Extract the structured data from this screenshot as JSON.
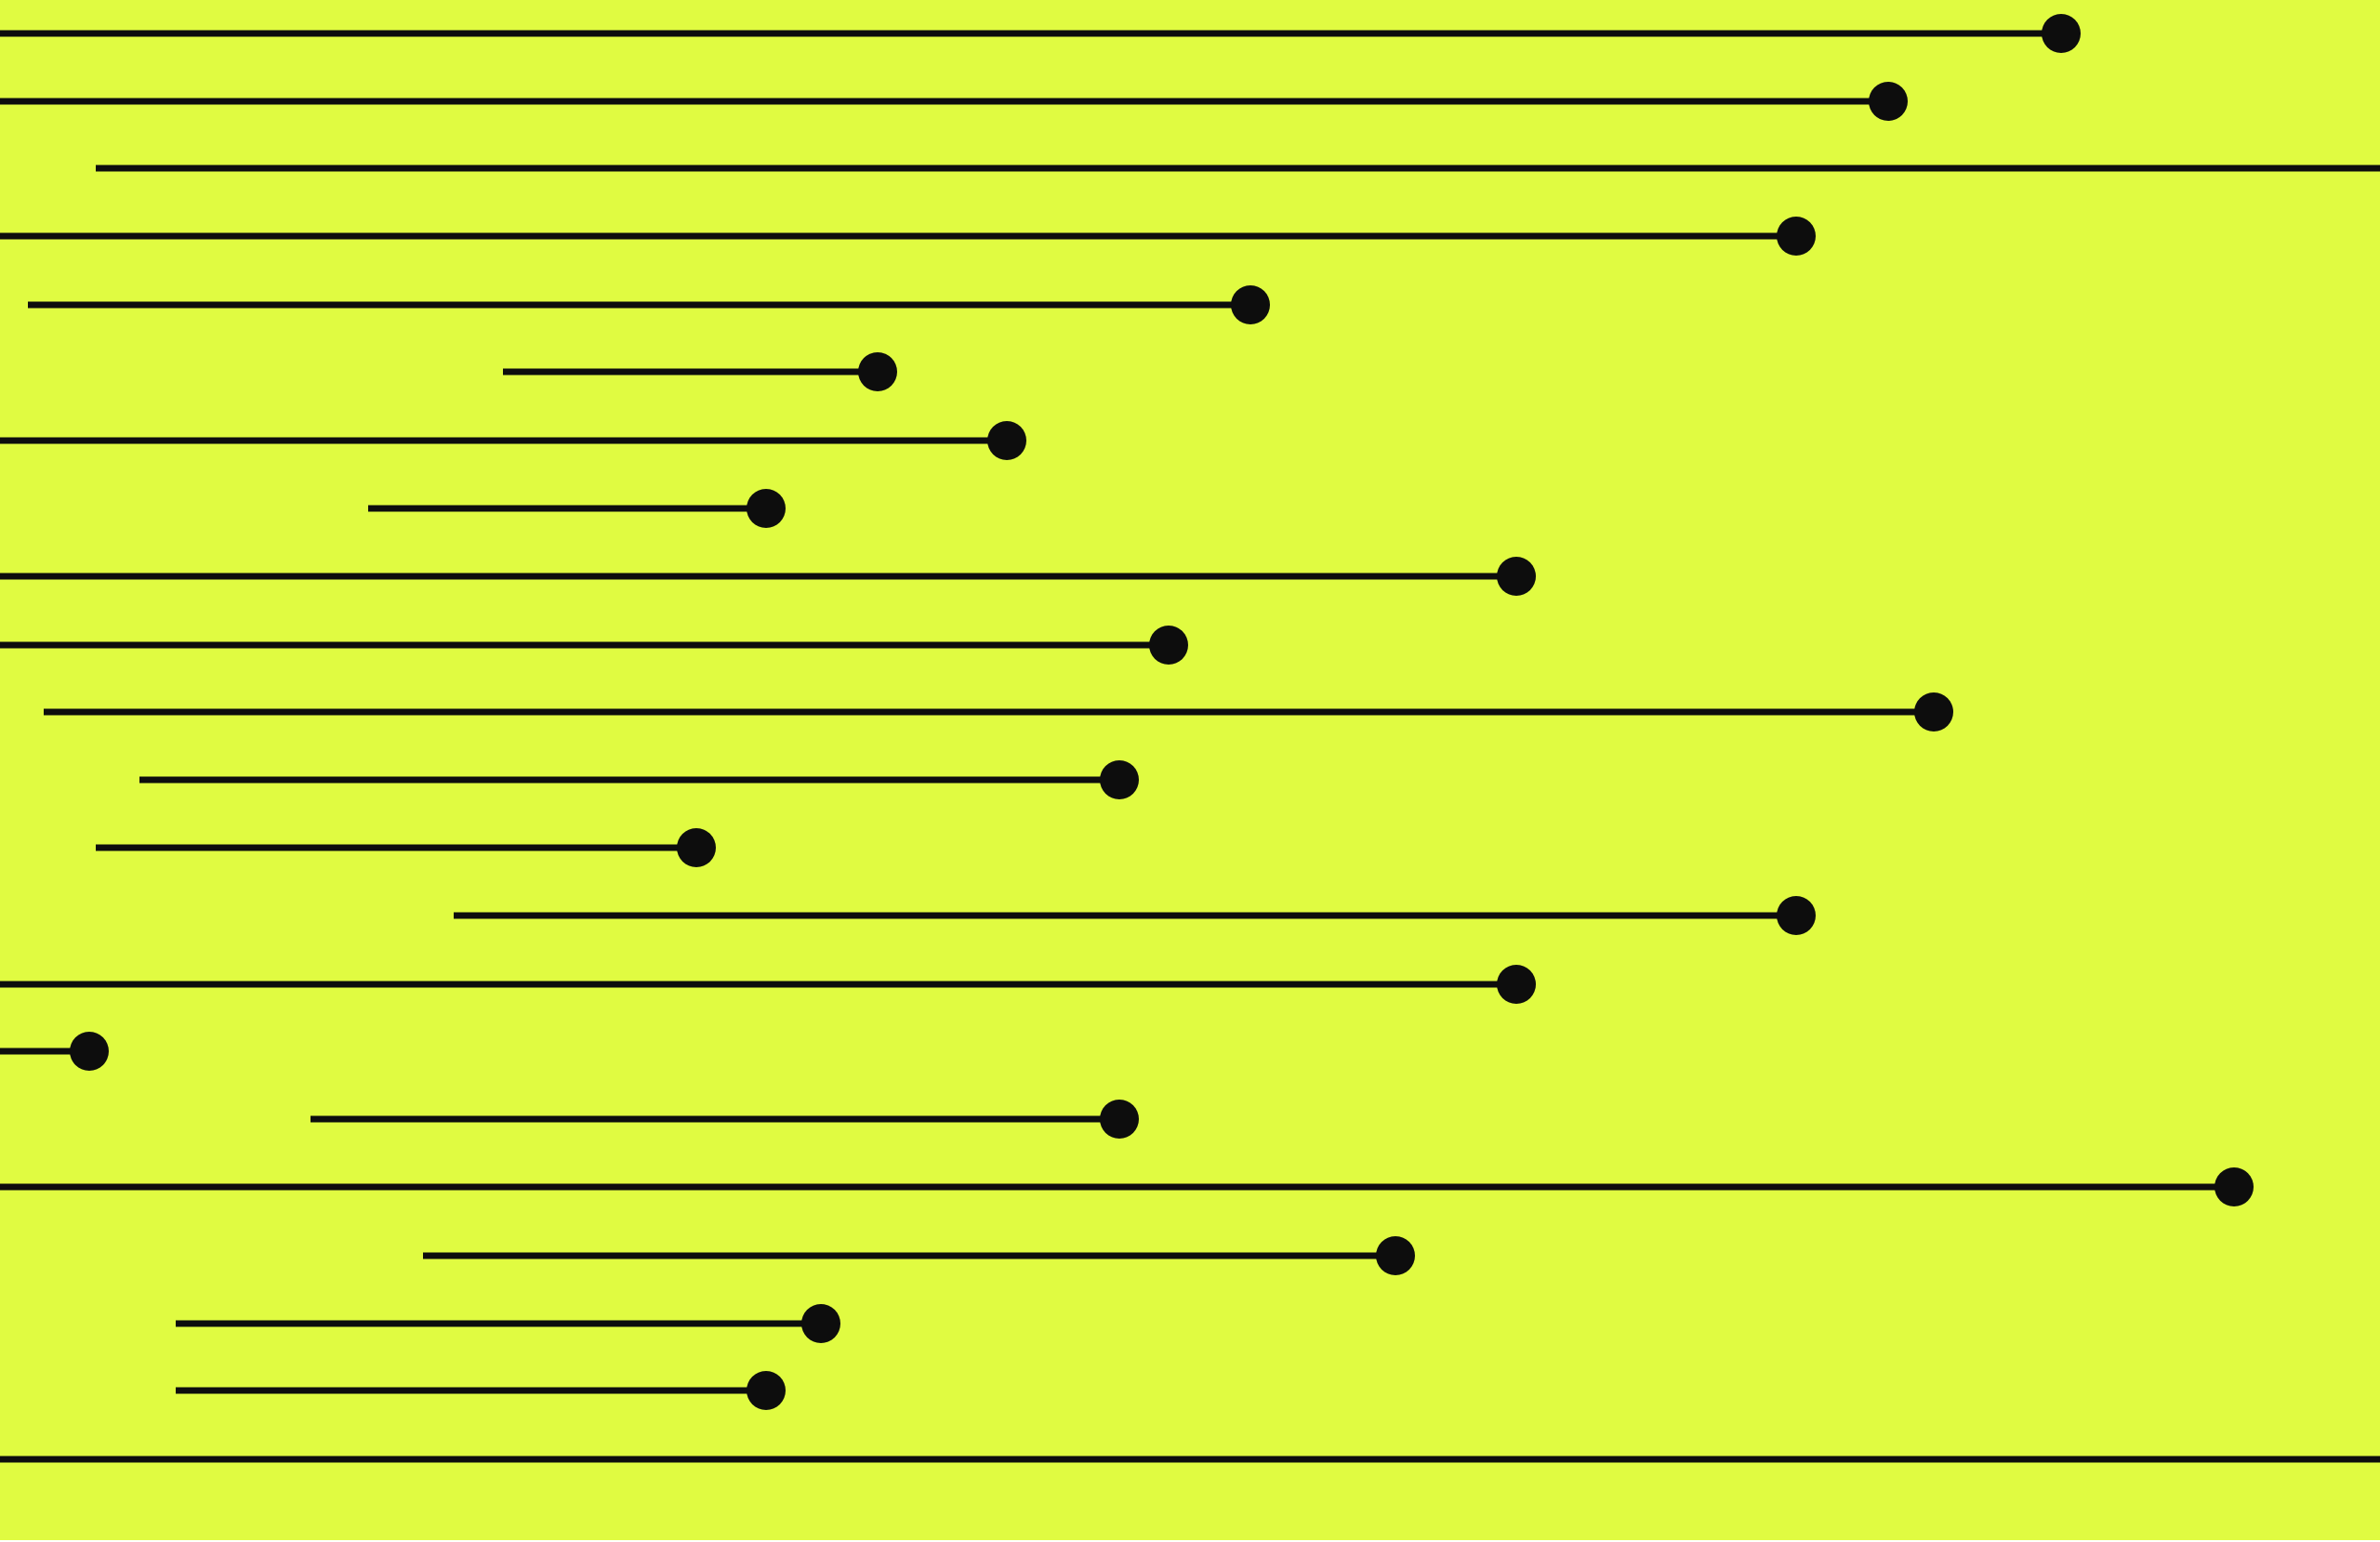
{
  "colors": {
    "background": "#e0fb41",
    "ink": "#0d0d0d",
    "margin": "#ffffff"
  },
  "pattern": {
    "line_count": 22,
    "dot_count": 20
  }
}
